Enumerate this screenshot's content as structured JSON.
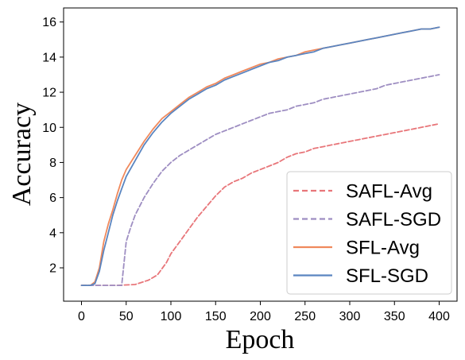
{
  "chart_data": {
    "type": "line",
    "title": "",
    "xlabel": "Epoch",
    "ylabel": "Accuracy",
    "xlim": [
      -20,
      420
    ],
    "ylim": [
      0.1,
      16.8
    ],
    "xticks": [
      0,
      50,
      100,
      150,
      200,
      250,
      300,
      350,
      400
    ],
    "yticks": [
      2,
      4,
      6,
      8,
      10,
      12,
      14,
      16
    ],
    "grid": false,
    "legend_position": "lower-right",
    "series": [
      {
        "name": "SAFL-Avg",
        "color": "#e8767a",
        "dash": "dashed",
        "points": [
          [
            0,
            1.0
          ],
          [
            40,
            1.0
          ],
          [
            60,
            1.05
          ],
          [
            75,
            1.3
          ],
          [
            85,
            1.6
          ],
          [
            95,
            2.3
          ],
          [
            100,
            2.8
          ],
          [
            110,
            3.5
          ],
          [
            120,
            4.2
          ],
          [
            130,
            4.9
          ],
          [
            140,
            5.5
          ],
          [
            150,
            6.1
          ],
          [
            160,
            6.6
          ],
          [
            170,
            6.9
          ],
          [
            180,
            7.1
          ],
          [
            190,
            7.4
          ],
          [
            200,
            7.6
          ],
          [
            210,
            7.8
          ],
          [
            220,
            8.0
          ],
          [
            230,
            8.3
          ],
          [
            240,
            8.5
          ],
          [
            250,
            8.6
          ],
          [
            260,
            8.8
          ],
          [
            270,
            8.9
          ],
          [
            280,
            9.0
          ],
          [
            290,
            9.1
          ],
          [
            300,
            9.2
          ],
          [
            310,
            9.3
          ],
          [
            320,
            9.4
          ],
          [
            330,
            9.5
          ],
          [
            340,
            9.6
          ],
          [
            350,
            9.7
          ],
          [
            360,
            9.8
          ],
          [
            370,
            9.9
          ],
          [
            380,
            10.0
          ],
          [
            390,
            10.1
          ],
          [
            400,
            10.2
          ]
        ]
      },
      {
        "name": "SAFL-SGD",
        "color": "#9e8ec2",
        "dash": "dashed",
        "points": [
          [
            0,
            1.0
          ],
          [
            10,
            1.0
          ],
          [
            20,
            1.0
          ],
          [
            30,
            1.0
          ],
          [
            45,
            1.0
          ],
          [
            50,
            3.5
          ],
          [
            55,
            4.3
          ],
          [
            60,
            5.0
          ],
          [
            65,
            5.5
          ],
          [
            70,
            6.0
          ],
          [
            75,
            6.4
          ],
          [
            80,
            6.8
          ],
          [
            90,
            7.5
          ],
          [
            100,
            8.0
          ],
          [
            110,
            8.4
          ],
          [
            120,
            8.7
          ],
          [
            130,
            9.0
          ],
          [
            140,
            9.3
          ],
          [
            150,
            9.6
          ],
          [
            160,
            9.8
          ],
          [
            170,
            10.0
          ],
          [
            180,
            10.2
          ],
          [
            190,
            10.4
          ],
          [
            200,
            10.6
          ],
          [
            210,
            10.8
          ],
          [
            220,
            10.9
          ],
          [
            230,
            11.0
          ],
          [
            240,
            11.2
          ],
          [
            250,
            11.3
          ],
          [
            260,
            11.4
          ],
          [
            270,
            11.6
          ],
          [
            280,
            11.7
          ],
          [
            290,
            11.8
          ],
          [
            300,
            11.9
          ],
          [
            310,
            12.0
          ],
          [
            320,
            12.1
          ],
          [
            330,
            12.2
          ],
          [
            340,
            12.4
          ],
          [
            350,
            12.5
          ],
          [
            360,
            12.6
          ],
          [
            370,
            12.7
          ],
          [
            380,
            12.8
          ],
          [
            390,
            12.9
          ],
          [
            400,
            13.0
          ]
        ]
      },
      {
        "name": "SFL-Avg",
        "color": "#f0895c",
        "dash": "solid",
        "points": [
          [
            0,
            1.0
          ],
          [
            10,
            1.0
          ],
          [
            15,
            1.2
          ],
          [
            20,
            2.0
          ],
          [
            25,
            3.5
          ],
          [
            30,
            4.5
          ],
          [
            35,
            5.3
          ],
          [
            40,
            6.2
          ],
          [
            45,
            7.0
          ],
          [
            50,
            7.6
          ],
          [
            60,
            8.4
          ],
          [
            70,
            9.2
          ],
          [
            80,
            9.9
          ],
          [
            90,
            10.5
          ],
          [
            100,
            10.9
          ],
          [
            110,
            11.3
          ],
          [
            120,
            11.7
          ],
          [
            130,
            12.0
          ],
          [
            140,
            12.3
          ],
          [
            150,
            12.5
          ],
          [
            160,
            12.8
          ],
          [
            170,
            13.0
          ],
          [
            180,
            13.2
          ],
          [
            190,
            13.4
          ],
          [
            200,
            13.6
          ],
          [
            210,
            13.7
          ],
          [
            220,
            13.9
          ],
          [
            230,
            14.0
          ],
          [
            240,
            14.1
          ],
          [
            250,
            14.3
          ],
          [
            260,
            14.4
          ],
          [
            270,
            14.5
          ],
          [
            280,
            14.6
          ],
          [
            290,
            14.7
          ],
          [
            300,
            14.8
          ],
          [
            310,
            14.9
          ],
          [
            320,
            15.0
          ],
          [
            330,
            15.1
          ],
          [
            340,
            15.2
          ],
          [
            350,
            15.3
          ],
          [
            360,
            15.4
          ],
          [
            370,
            15.5
          ],
          [
            380,
            15.6
          ],
          [
            390,
            15.6
          ],
          [
            400,
            15.7
          ]
        ]
      },
      {
        "name": "SFL-SGD",
        "color": "#5a85c0",
        "dash": "solid",
        "points": [
          [
            0,
            1.0
          ],
          [
            10,
            1.0
          ],
          [
            15,
            1.1
          ],
          [
            20,
            1.8
          ],
          [
            25,
            3.0
          ],
          [
            30,
            4.0
          ],
          [
            35,
            5.0
          ],
          [
            40,
            5.8
          ],
          [
            45,
            6.5
          ],
          [
            50,
            7.2
          ],
          [
            60,
            8.1
          ],
          [
            70,
            9.0
          ],
          [
            80,
            9.7
          ],
          [
            90,
            10.3
          ],
          [
            100,
            10.8
          ],
          [
            110,
            11.2
          ],
          [
            120,
            11.6
          ],
          [
            130,
            11.9
          ],
          [
            140,
            12.2
          ],
          [
            150,
            12.4
          ],
          [
            160,
            12.7
          ],
          [
            170,
            12.9
          ],
          [
            180,
            13.1
          ],
          [
            190,
            13.3
          ],
          [
            200,
            13.5
          ],
          [
            210,
            13.7
          ],
          [
            220,
            13.8
          ],
          [
            230,
            14.0
          ],
          [
            240,
            14.1
          ],
          [
            250,
            14.2
          ],
          [
            260,
            14.3
          ],
          [
            270,
            14.5
          ],
          [
            280,
            14.6
          ],
          [
            290,
            14.7
          ],
          [
            300,
            14.8
          ],
          [
            310,
            14.9
          ],
          [
            320,
            15.0
          ],
          [
            330,
            15.1
          ],
          [
            340,
            15.2
          ],
          [
            350,
            15.3
          ],
          [
            360,
            15.4
          ],
          [
            370,
            15.5
          ],
          [
            380,
            15.6
          ],
          [
            390,
            15.6
          ],
          [
            400,
            15.7
          ]
        ]
      }
    ]
  }
}
